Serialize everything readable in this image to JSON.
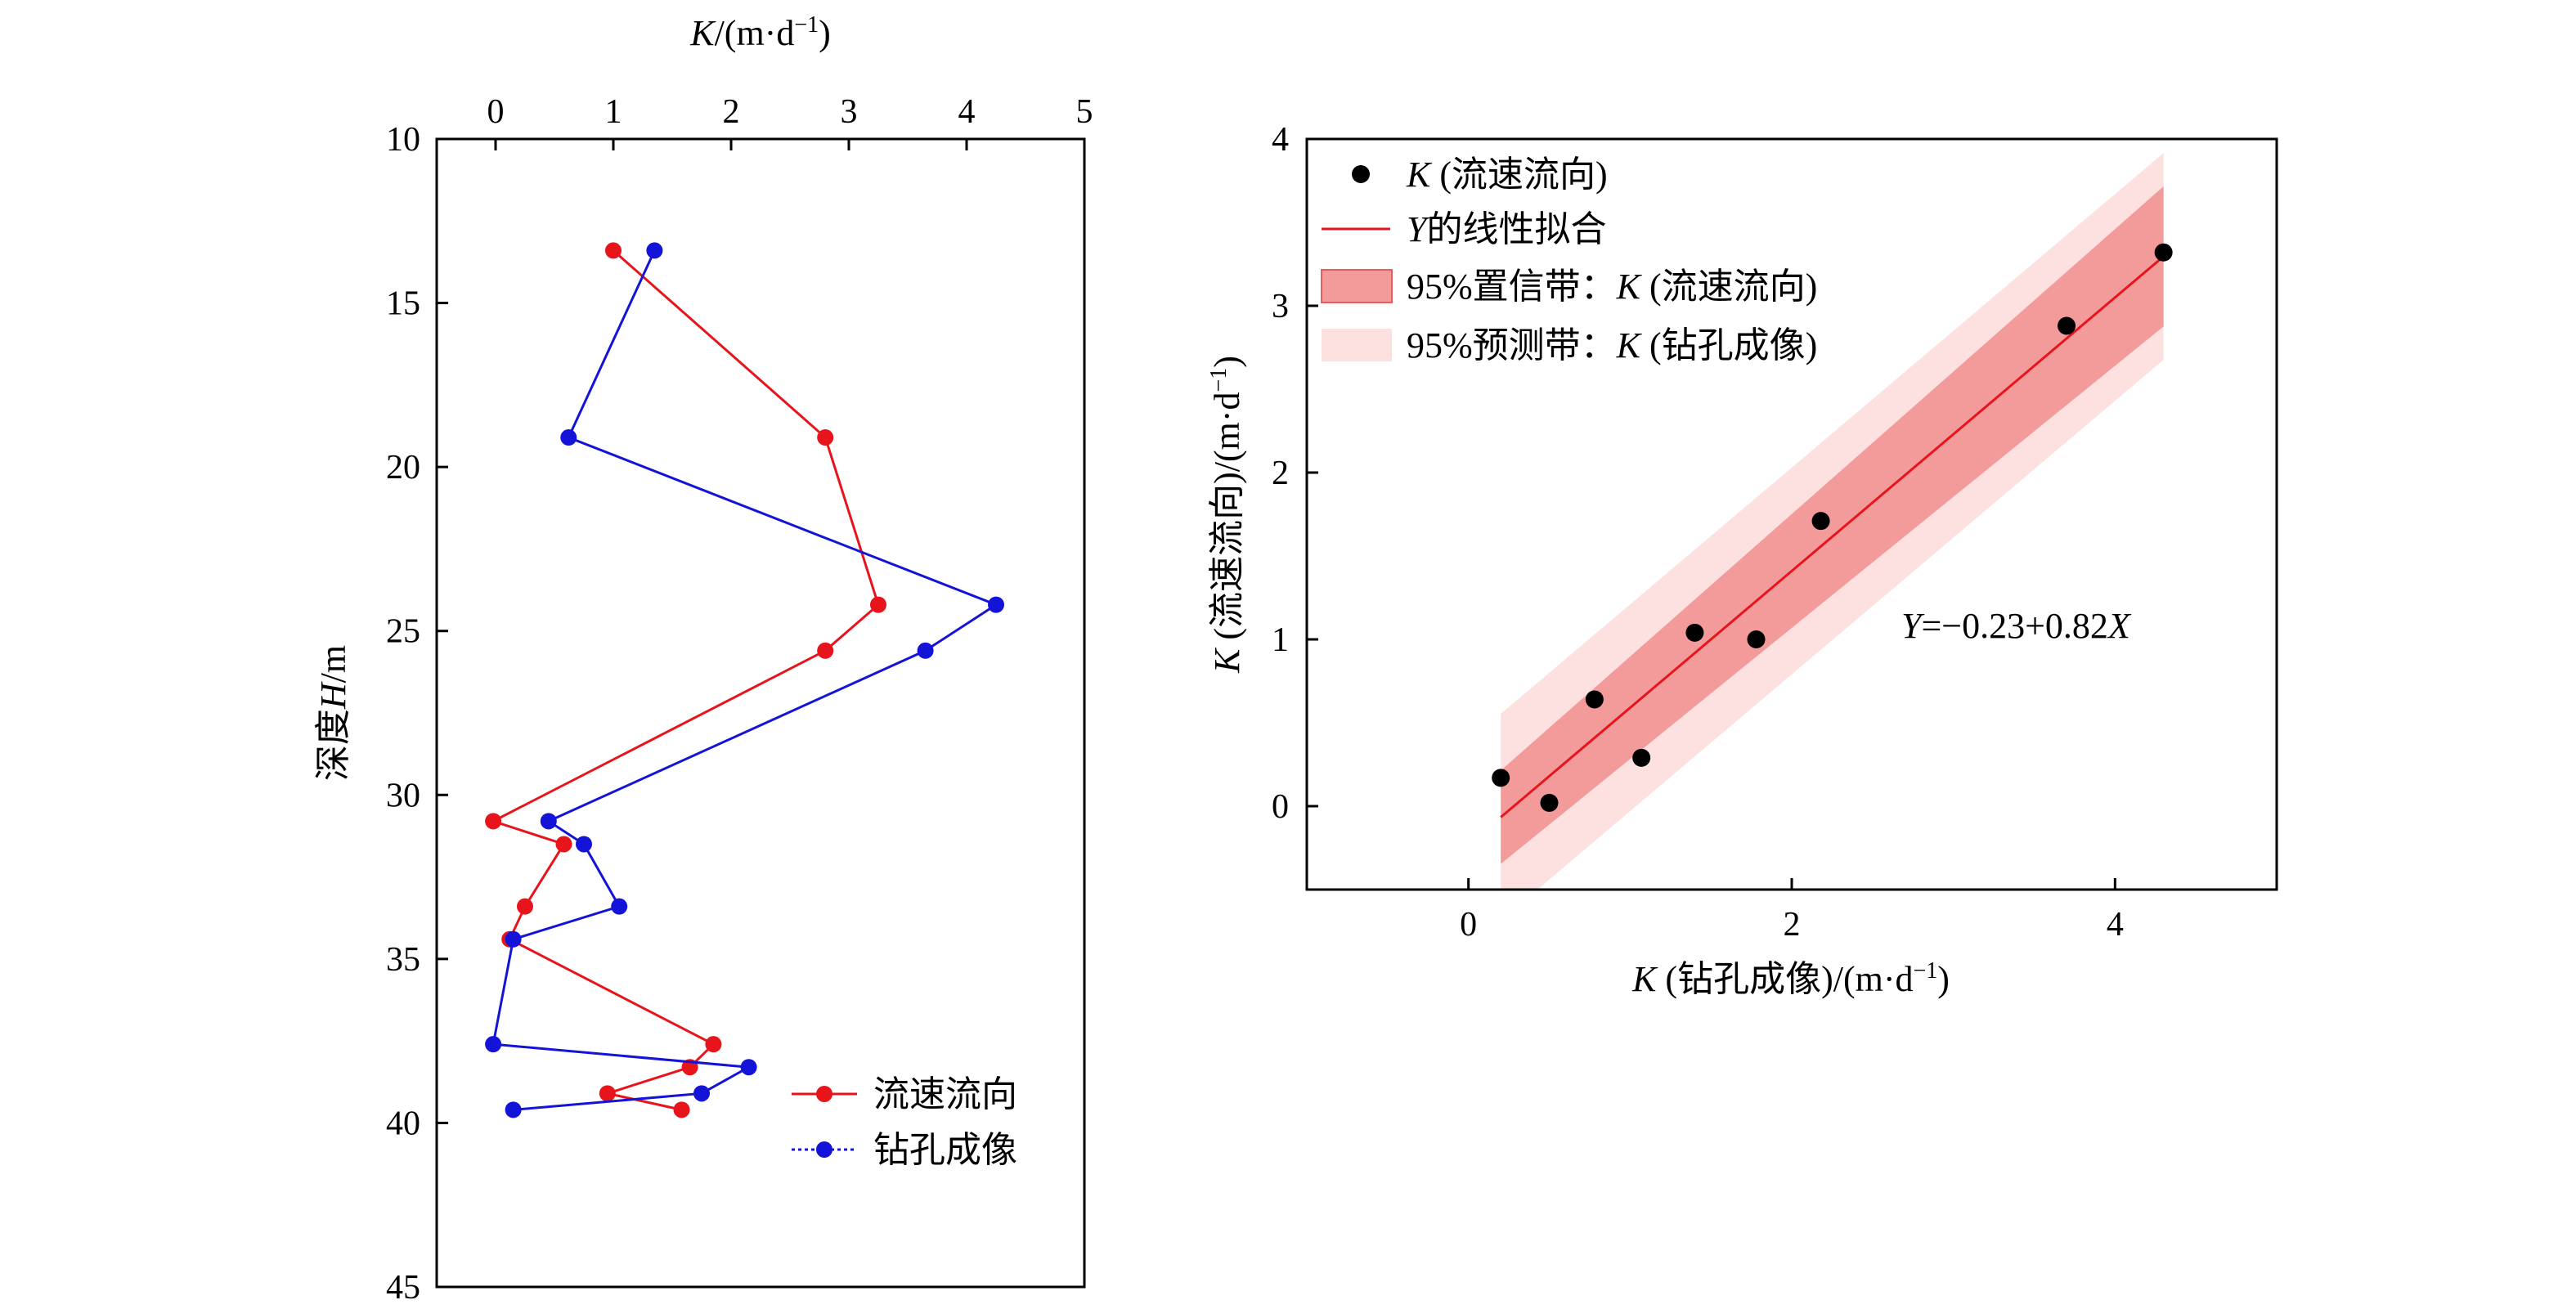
{
  "chart_data": [
    {
      "type": "line",
      "xlabel": "K/(m·d⁻¹)",
      "ylabel": "深度H/m",
      "xlim": [
        -0.5,
        5
      ],
      "ylim": [
        10,
        45
      ],
      "y_inverted": true,
      "x_ticks": [
        "0",
        "1",
        "2",
        "3",
        "4",
        "5"
      ],
      "y_ticks": [
        "10",
        "15",
        "20",
        "25",
        "30",
        "35",
        "40",
        "45"
      ],
      "legend_position": "bottom-right",
      "colors": {
        "流速流向": "#e8141c",
        "钻孔成像": "#1414d8"
      },
      "series": [
        {
          "name": "流速流向",
          "points": [
            [
              1.0,
              13.4
            ],
            [
              2.8,
              19.1
            ],
            [
              3.25,
              24.2
            ],
            [
              2.8,
              25.6
            ],
            [
              -0.02,
              30.8
            ],
            [
              0.58,
              31.5
            ],
            [
              0.25,
              33.4
            ],
            [
              0.12,
              34.4
            ],
            [
              1.85,
              37.6
            ],
            [
              1.65,
              38.3
            ],
            [
              0.95,
              39.1
            ],
            [
              1.58,
              39.6
            ]
          ]
        },
        {
          "name": "钻孔成像",
          "points": [
            [
              1.35,
              13.4
            ],
            [
              0.62,
              19.1
            ],
            [
              4.25,
              24.2
            ],
            [
              3.65,
              25.6
            ],
            [
              0.45,
              30.8
            ],
            [
              0.75,
              31.5
            ],
            [
              1.05,
              33.4
            ],
            [
              0.15,
              34.4
            ],
            [
              -0.02,
              37.6
            ],
            [
              2.15,
              38.3
            ],
            [
              1.75,
              39.1
            ],
            [
              0.15,
              39.6
            ]
          ]
        }
      ]
    },
    {
      "type": "scatter",
      "xlabel": "K (钻孔成像)/(m·d⁻¹)",
      "ylabel": "K (流速流向)/(m·d⁻¹)",
      "xlim": [
        -1,
        5
      ],
      "ylim": [
        -0.5,
        4
      ],
      "x_ticks": [
        "0",
        "2",
        "4"
      ],
      "y_ticks": [
        "0",
        "1",
        "2",
        "3",
        "4"
      ],
      "legend_position": "top-left",
      "annotation": "Y=−0.23+0.82X",
      "fit": {
        "intercept": -0.23,
        "slope": 0.82,
        "x_range": [
          0.2,
          4.3
        ]
      },
      "confidence_band_halfwidth": [
        0.28,
        0.42
      ],
      "prediction_band_halfwidth": [
        0.62,
        0.62
      ],
      "colors": {
        "points": "#000000",
        "fit": "#e8141c",
        "confidence": "#f39b9b",
        "prediction": "#fde1e1"
      },
      "legend": [
        "K (流速流向)",
        "Y的线性拟合",
        "95%置信带：K (流速流向)",
        "95%预测带：K (钻孔成像)"
      ],
      "points": [
        [
          0.2,
          0.17
        ],
        [
          0.5,
          0.02
        ],
        [
          0.78,
          0.64
        ],
        [
          1.07,
          0.29
        ],
        [
          1.4,
          1.04
        ],
        [
          1.78,
          1.0
        ],
        [
          2.18,
          1.71
        ],
        [
          3.7,
          2.88
        ],
        [
          4.3,
          3.32
        ]
      ]
    }
  ]
}
